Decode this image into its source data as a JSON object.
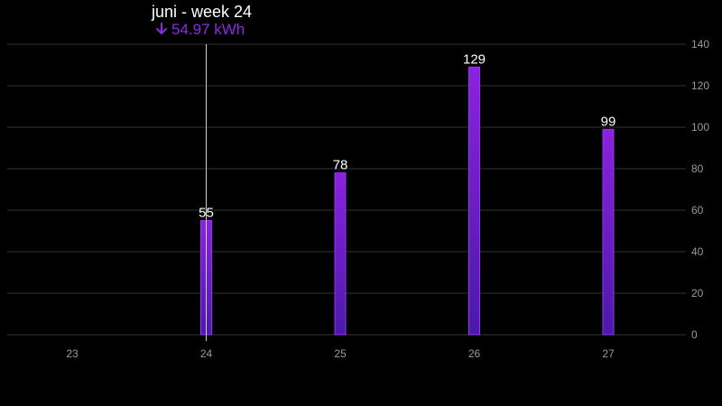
{
  "chart_data": {
    "type": "bar",
    "categories": [
      "23",
      "24",
      "25",
      "26",
      "27"
    ],
    "values": [
      null,
      55,
      78,
      129,
      99
    ],
    "data_labels": [
      "",
      "55",
      "78",
      "129",
      "99"
    ],
    "ylim": [
      0,
      140
    ],
    "yticks": [
      0,
      20,
      40,
      60,
      80,
      100,
      120,
      140
    ],
    "y_axis_side": "right",
    "grid": true,
    "title": "",
    "xlabel": "",
    "ylabel": ""
  },
  "tooltip": {
    "title": "juni - week 24",
    "value": "54.97 kWh",
    "direction_icon": "arrow-down-icon",
    "category": "24"
  },
  "colors": {
    "background": "#000000",
    "bar_top": "#8a22de",
    "bar_bottom": "#4a1aa8",
    "bar_edge": "#9b30ff",
    "highlight": "#8b2be2",
    "gridline": "#333333",
    "cursor_line": "#cfcfcf"
  }
}
